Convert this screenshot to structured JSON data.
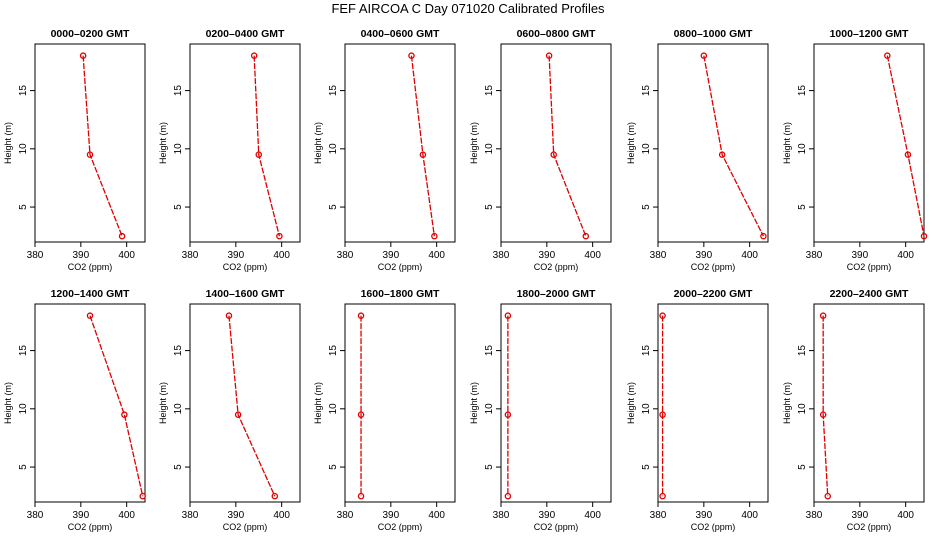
{
  "title": "FEF AIRCOA C  Day 071020  Calibrated Profiles",
  "colors": {
    "series": "#e00000",
    "axis": "#000000"
  },
  "chart_data": [
    {
      "type": "line",
      "title": "0000–0200 GMT",
      "xlabel": "CO2 (ppm)",
      "ylabel": "Height (m)",
      "xlim": [
        380,
        404
      ],
      "ylim": [
        2,
        19
      ],
      "xticks": [
        380,
        390,
        400
      ],
      "yticks": [
        5,
        10,
        15
      ],
      "x": [
        390.5,
        392,
        399
      ],
      "y": [
        18,
        9.5,
        2.5
      ],
      "grid": false
    },
    {
      "type": "line",
      "title": "0200–0400 GMT",
      "xlabel": "CO2 (ppm)",
      "ylabel": "Height (m)",
      "xlim": [
        380,
        404
      ],
      "ylim": [
        2,
        19
      ],
      "xticks": [
        380,
        390,
        400
      ],
      "yticks": [
        5,
        10,
        15
      ],
      "x": [
        394,
        395,
        399.5
      ],
      "y": [
        18,
        9.5,
        2.5
      ],
      "grid": false
    },
    {
      "type": "line",
      "title": "0400–0600 GMT",
      "xlabel": "CO2 (ppm)",
      "ylabel": "Height (m)",
      "xlim": [
        380,
        404
      ],
      "ylim": [
        2,
        19
      ],
      "xticks": [
        380,
        390,
        400
      ],
      "yticks": [
        5,
        10,
        15
      ],
      "x": [
        394.5,
        397,
        399.5
      ],
      "y": [
        18,
        9.5,
        2.5
      ],
      "grid": false
    },
    {
      "type": "line",
      "title": "0600–0800 GMT",
      "xlabel": "CO2 (ppm)",
      "ylabel": "Height (m)",
      "xlim": [
        380,
        404
      ],
      "ylim": [
        2,
        19
      ],
      "xticks": [
        380,
        390,
        400
      ],
      "yticks": [
        5,
        10,
        15
      ],
      "x": [
        390.5,
        391.5,
        398.5
      ],
      "y": [
        18,
        9.5,
        2.5
      ],
      "grid": false
    },
    {
      "type": "line",
      "title": "0800–1000 GMT",
      "xlabel": "CO2 (ppm)",
      "ylabel": "Height (m)",
      "xlim": [
        380,
        404
      ],
      "ylim": [
        2,
        19
      ],
      "xticks": [
        380,
        390,
        400
      ],
      "yticks": [
        5,
        10,
        15
      ],
      "x": [
        390,
        394,
        403
      ],
      "y": [
        18,
        9.5,
        2.5
      ],
      "grid": false
    },
    {
      "type": "line",
      "title": "1000–1200 GMT",
      "xlabel": "CO2 (ppm)",
      "ylabel": "Height (m)",
      "xlim": [
        380,
        404
      ],
      "ylim": [
        2,
        19
      ],
      "xticks": [
        380,
        390,
        400
      ],
      "yticks": [
        5,
        10,
        15
      ],
      "x": [
        396,
        400.5,
        404
      ],
      "y": [
        18,
        9.5,
        2.5
      ],
      "grid": false
    },
    {
      "type": "line",
      "title": "1200–1400 GMT",
      "xlabel": "CO2 (ppm)",
      "ylabel": "Height (m)",
      "xlim": [
        380,
        404
      ],
      "ylim": [
        2,
        19
      ],
      "xticks": [
        380,
        390,
        400
      ],
      "yticks": [
        5,
        10,
        15
      ],
      "x": [
        392,
        399.5,
        403.5
      ],
      "y": [
        18,
        9.5,
        2.5
      ],
      "grid": false
    },
    {
      "type": "line",
      "title": "1400–1600 GMT",
      "xlabel": "CO2 (ppm)",
      "ylabel": "Height (m)",
      "xlim": [
        380,
        404
      ],
      "ylim": [
        2,
        19
      ],
      "xticks": [
        380,
        390,
        400
      ],
      "yticks": [
        5,
        10,
        15
      ],
      "x": [
        388.5,
        390.5,
        398.5
      ],
      "y": [
        18,
        9.5,
        2.5
      ],
      "grid": false
    },
    {
      "type": "line",
      "title": "1600–1800 GMT",
      "xlabel": "CO2 (ppm)",
      "ylabel": "Height (m)",
      "xlim": [
        380,
        404
      ],
      "ylim": [
        2,
        19
      ],
      "xticks": [
        380,
        390,
        400
      ],
      "yticks": [
        5,
        10,
        15
      ],
      "x": [
        383.5,
        383.5,
        383.5
      ],
      "y": [
        18,
        9.5,
        2.5
      ],
      "grid": false
    },
    {
      "type": "line",
      "title": "1800–2000 GMT",
      "xlabel": "CO2 (ppm)",
      "ylabel": "Height (m)",
      "xlim": [
        380,
        404
      ],
      "ylim": [
        2,
        19
      ],
      "xticks": [
        380,
        390,
        400
      ],
      "yticks": [
        5,
        10,
        15
      ],
      "x": [
        381.5,
        381.5,
        381.5
      ],
      "y": [
        18,
        9.5,
        2.5
      ],
      "grid": false
    },
    {
      "type": "line",
      "title": "2000–2200 GMT",
      "xlabel": "CO2 (ppm)",
      "ylabel": "Height (m)",
      "xlim": [
        380,
        404
      ],
      "ylim": [
        2,
        19
      ],
      "xticks": [
        380,
        390,
        400
      ],
      "yticks": [
        5,
        10,
        15
      ],
      "x": [
        381,
        381,
        381
      ],
      "y": [
        18,
        9.5,
        2.5
      ],
      "grid": false
    },
    {
      "type": "line",
      "title": "2200–2400 GMT",
      "xlabel": "CO2 (ppm)",
      "ylabel": "Height (m)",
      "xlim": [
        380,
        404
      ],
      "ylim": [
        2,
        19
      ],
      "xticks": [
        380,
        390,
        400
      ],
      "yticks": [
        5,
        10,
        15
      ],
      "x": [
        382,
        382,
        383
      ],
      "y": [
        18,
        9.5,
        2.5
      ],
      "grid": false
    }
  ]
}
